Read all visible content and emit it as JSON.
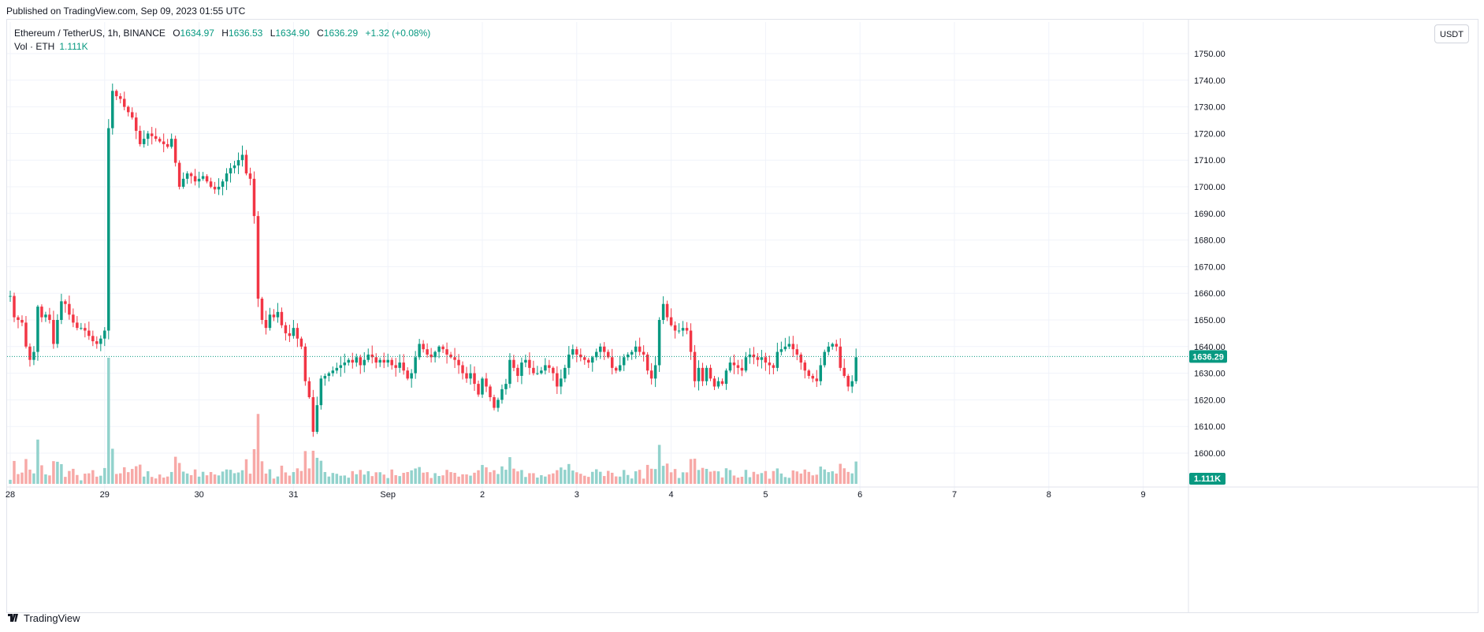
{
  "header": {
    "published": "Published on TradingView.com, Sep 09, 2023 01:55 UTC"
  },
  "legend": {
    "symbol": "Ethereum / TetherUS, 1h, BINANCE",
    "o_label": "O",
    "o": "1634.97",
    "h_label": "H",
    "h": "1636.53",
    "l_label": "L",
    "l": "1634.90",
    "c_label": "C",
    "c": "1636.29",
    "change": "+1.32 (+0.08%)",
    "vol_label": "Vol · ETH",
    "vol_value": "1.111K"
  },
  "toolbar": {
    "currency": "USDT"
  },
  "footer": {
    "brand": "TradingView"
  },
  "colors": {
    "up": "#089981",
    "down": "#f23645",
    "up_vol": "#92d2cc",
    "down_vol": "#f7a9a7",
    "grid": "#f0f3fa",
    "last_price": "#089981"
  },
  "chart_data": {
    "type": "candlestick",
    "symbol": "ETHUSDT",
    "interval": "1h",
    "y_ticks": [
      1600,
      1610,
      1620,
      1630,
      1640,
      1650,
      1660,
      1670,
      1680,
      1690,
      1700,
      1710,
      1720,
      1730,
      1740,
      1750
    ],
    "y_tick_labels": [
      "1600.00",
      "1610.00",
      "1620.00",
      "1630.00",
      "1640.00",
      "1650.00",
      "1660.00",
      "1670.00",
      "1680.00",
      "1690.00",
      "1700.00",
      "1710.00",
      "1720.00",
      "1730.00",
      "1740.00",
      "1750.00"
    ],
    "ylim": [
      1593,
      1755
    ],
    "x_labels": [
      "28",
      "29",
      "30",
      "31",
      "Sep",
      "2",
      "3",
      "4",
      "5",
      "6",
      "7",
      "8",
      "9"
    ],
    "last_price": 1636.29,
    "last_price_label": "1636.29",
    "last_volume_label": "1.111K",
    "bars_per_day": 24,
    "series": [
      {
        "date": "28",
        "anchors": [
          1659,
          1651,
          1650,
          1649,
          1640,
          1635,
          1638,
          1655,
          1651,
          1652,
          1650,
          1641,
          1650,
          1657,
          1656,
          1652,
          1649,
          1647,
          1647,
          1646,
          1644,
          1642,
          1641,
          1643
        ]
      },
      {
        "date": "29",
        "anchors": [
          1646,
          1722,
          1736,
          1734,
          1733,
          1730,
          1728,
          1726,
          1721,
          1716,
          1718,
          1720,
          1719,
          1718,
          1717,
          1716,
          1715,
          1718,
          1709,
          1700,
          1703,
          1705,
          1704,
          1702
        ]
      },
      {
        "date": "30",
        "anchors": [
          1703,
          1704,
          1702,
          1700,
          1699,
          1700,
          1702,
          1705,
          1707,
          1708,
          1710,
          1712,
          1705,
          1703,
          1689,
          1658,
          1650,
          1647,
          1652,
          1651,
          1653,
          1648,
          1645,
          1644
        ]
      },
      {
        "date": "31",
        "anchors": [
          1647,
          1643,
          1640,
          1627,
          1621,
          1608,
          1618,
          1628,
          1629,
          1630,
          1631,
          1632,
          1633,
          1634,
          1635,
          1634,
          1636,
          1633,
          1635,
          1637,
          1636,
          1634,
          1635,
          1634
        ]
      },
      {
        "date": "Sep",
        "anchors": [
          1635,
          1633,
          1632,
          1634,
          1631,
          1628,
          1630,
          1636,
          1641,
          1639,
          1637,
          1636,
          1638,
          1640,
          1639,
          1637,
          1636,
          1635,
          1633,
          1630,
          1628,
          1630,
          1626,
          1622
        ]
      },
      {
        "date": "2",
        "anchors": [
          1628,
          1625,
          1621,
          1617,
          1620,
          1624,
          1626,
          1635,
          1632,
          1629,
          1634,
          1635,
          1632,
          1630,
          1630,
          1631,
          1633,
          1632,
          1630,
          1625,
          1628,
          1632,
          1637,
          1639
        ]
      },
      {
        "date": "3",
        "anchors": [
          1637,
          1636,
          1635,
          1634,
          1636,
          1638,
          1640,
          1638,
          1636,
          1632,
          1631,
          1633,
          1636,
          1637,
          1638,
          1640,
          1638,
          1637,
          1631,
          1628,
          1633,
          1650,
          1656,
          1651
        ]
      },
      {
        "date": "4",
        "anchors": [
          1648,
          1646,
          1646,
          1647,
          1646,
          1638,
          1627,
          1632,
          1627,
          1632,
          1628,
          1625,
          1627,
          1626,
          1631,
          1634,
          1633,
          1632,
          1631,
          1636,
          1637,
          1636,
          1635,
          1636
        ]
      },
      {
        "date": "5",
        "anchors": [
          1634,
          1633,
          1632,
          1638,
          1639,
          1640,
          1641,
          1639,
          1637,
          1634,
          1631,
          1629,
          1628,
          1627,
          1633,
          1638,
          1640,
          1641,
          1640,
          1632,
          1629,
          1625,
          1627,
          1636
        ]
      }
    ]
  }
}
